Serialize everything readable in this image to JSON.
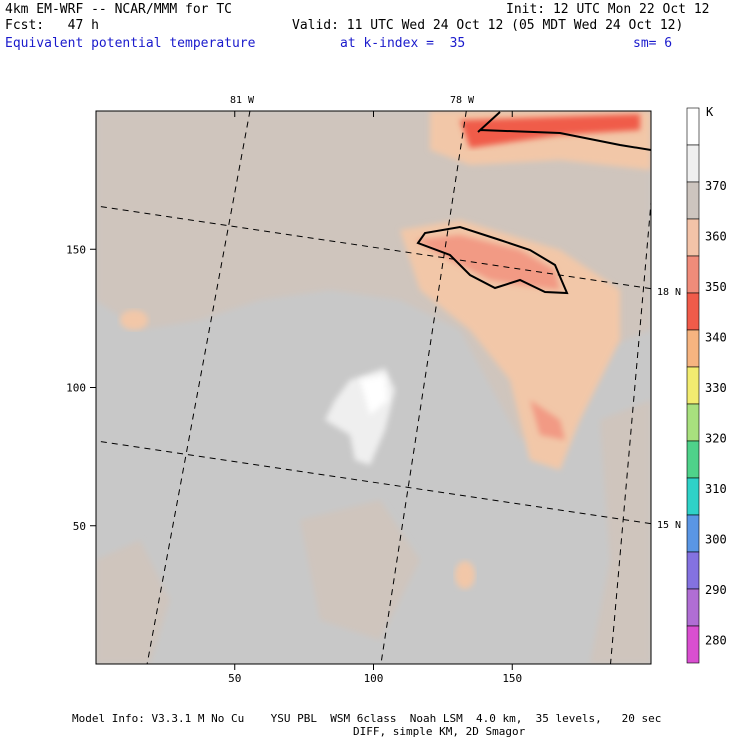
{
  "header": {
    "line1_left": "4km EM-WRF -- NCAR/MMM for TC",
    "line1_right": "Init: 12 UTC Mon 22 Oct 12",
    "line2_left": "Fcst:   47 h",
    "line2_right": "Valid: 11 UTC Wed 24 Oct 12 (05 MDT Wed 24 Oct 12)",
    "line3_field": "Equivalent potential temperature",
    "line3_level": "at k-index =  35",
    "line3_sm": "sm= 6"
  },
  "footer": {
    "line1": "Model Info: V3.3.1 M No Cu    YSU PBL  WSM 6class  Noah LSM  4.0 km,  35 levels,   20 sec",
    "line2": "DIFF, simple KM, 2D Smagor"
  },
  "map_labels": {
    "lon_81": "81 W",
    "lon_78": "78 W",
    "lat_18": "18 N",
    "lat_15": "15 N"
  },
  "colors": {
    "background_fill": "#c8c8c8",
    "fill_350": "#f2c7a8",
    "fill_340": "#f29a84",
    "fill_330": "#f05b4a",
    "fill_360": "#cfc5bd",
    "fill_370": "#efefef",
    "contour_line": "#000000"
  },
  "chart_data": {
    "type": "heatmap",
    "title": "Equivalent potential temperature",
    "xlim": [
      0,
      200
    ],
    "ylim": [
      0,
      200
    ],
    "x_ticks": [
      50,
      100,
      150
    ],
    "y_ticks": [
      50,
      100,
      150
    ],
    "colorbar": {
      "unit": "K",
      "levels": [
        280,
        290,
        300,
        310,
        320,
        330,
        340,
        350,
        360,
        370
      ],
      "colors": [
        "#ffffff",
        "#f0f0f0",
        "#cdc5bf",
        "#f3c3a8",
        "#f08c7a",
        "#f05b4a",
        "#f6b480",
        "#f2ec70",
        "#a8e07e",
        "#4fd28a",
        "#2fd2c8",
        "#5a96e4",
        "#8472e0",
        "#b06ed4",
        "#d94fd0"
      ]
    }
  }
}
